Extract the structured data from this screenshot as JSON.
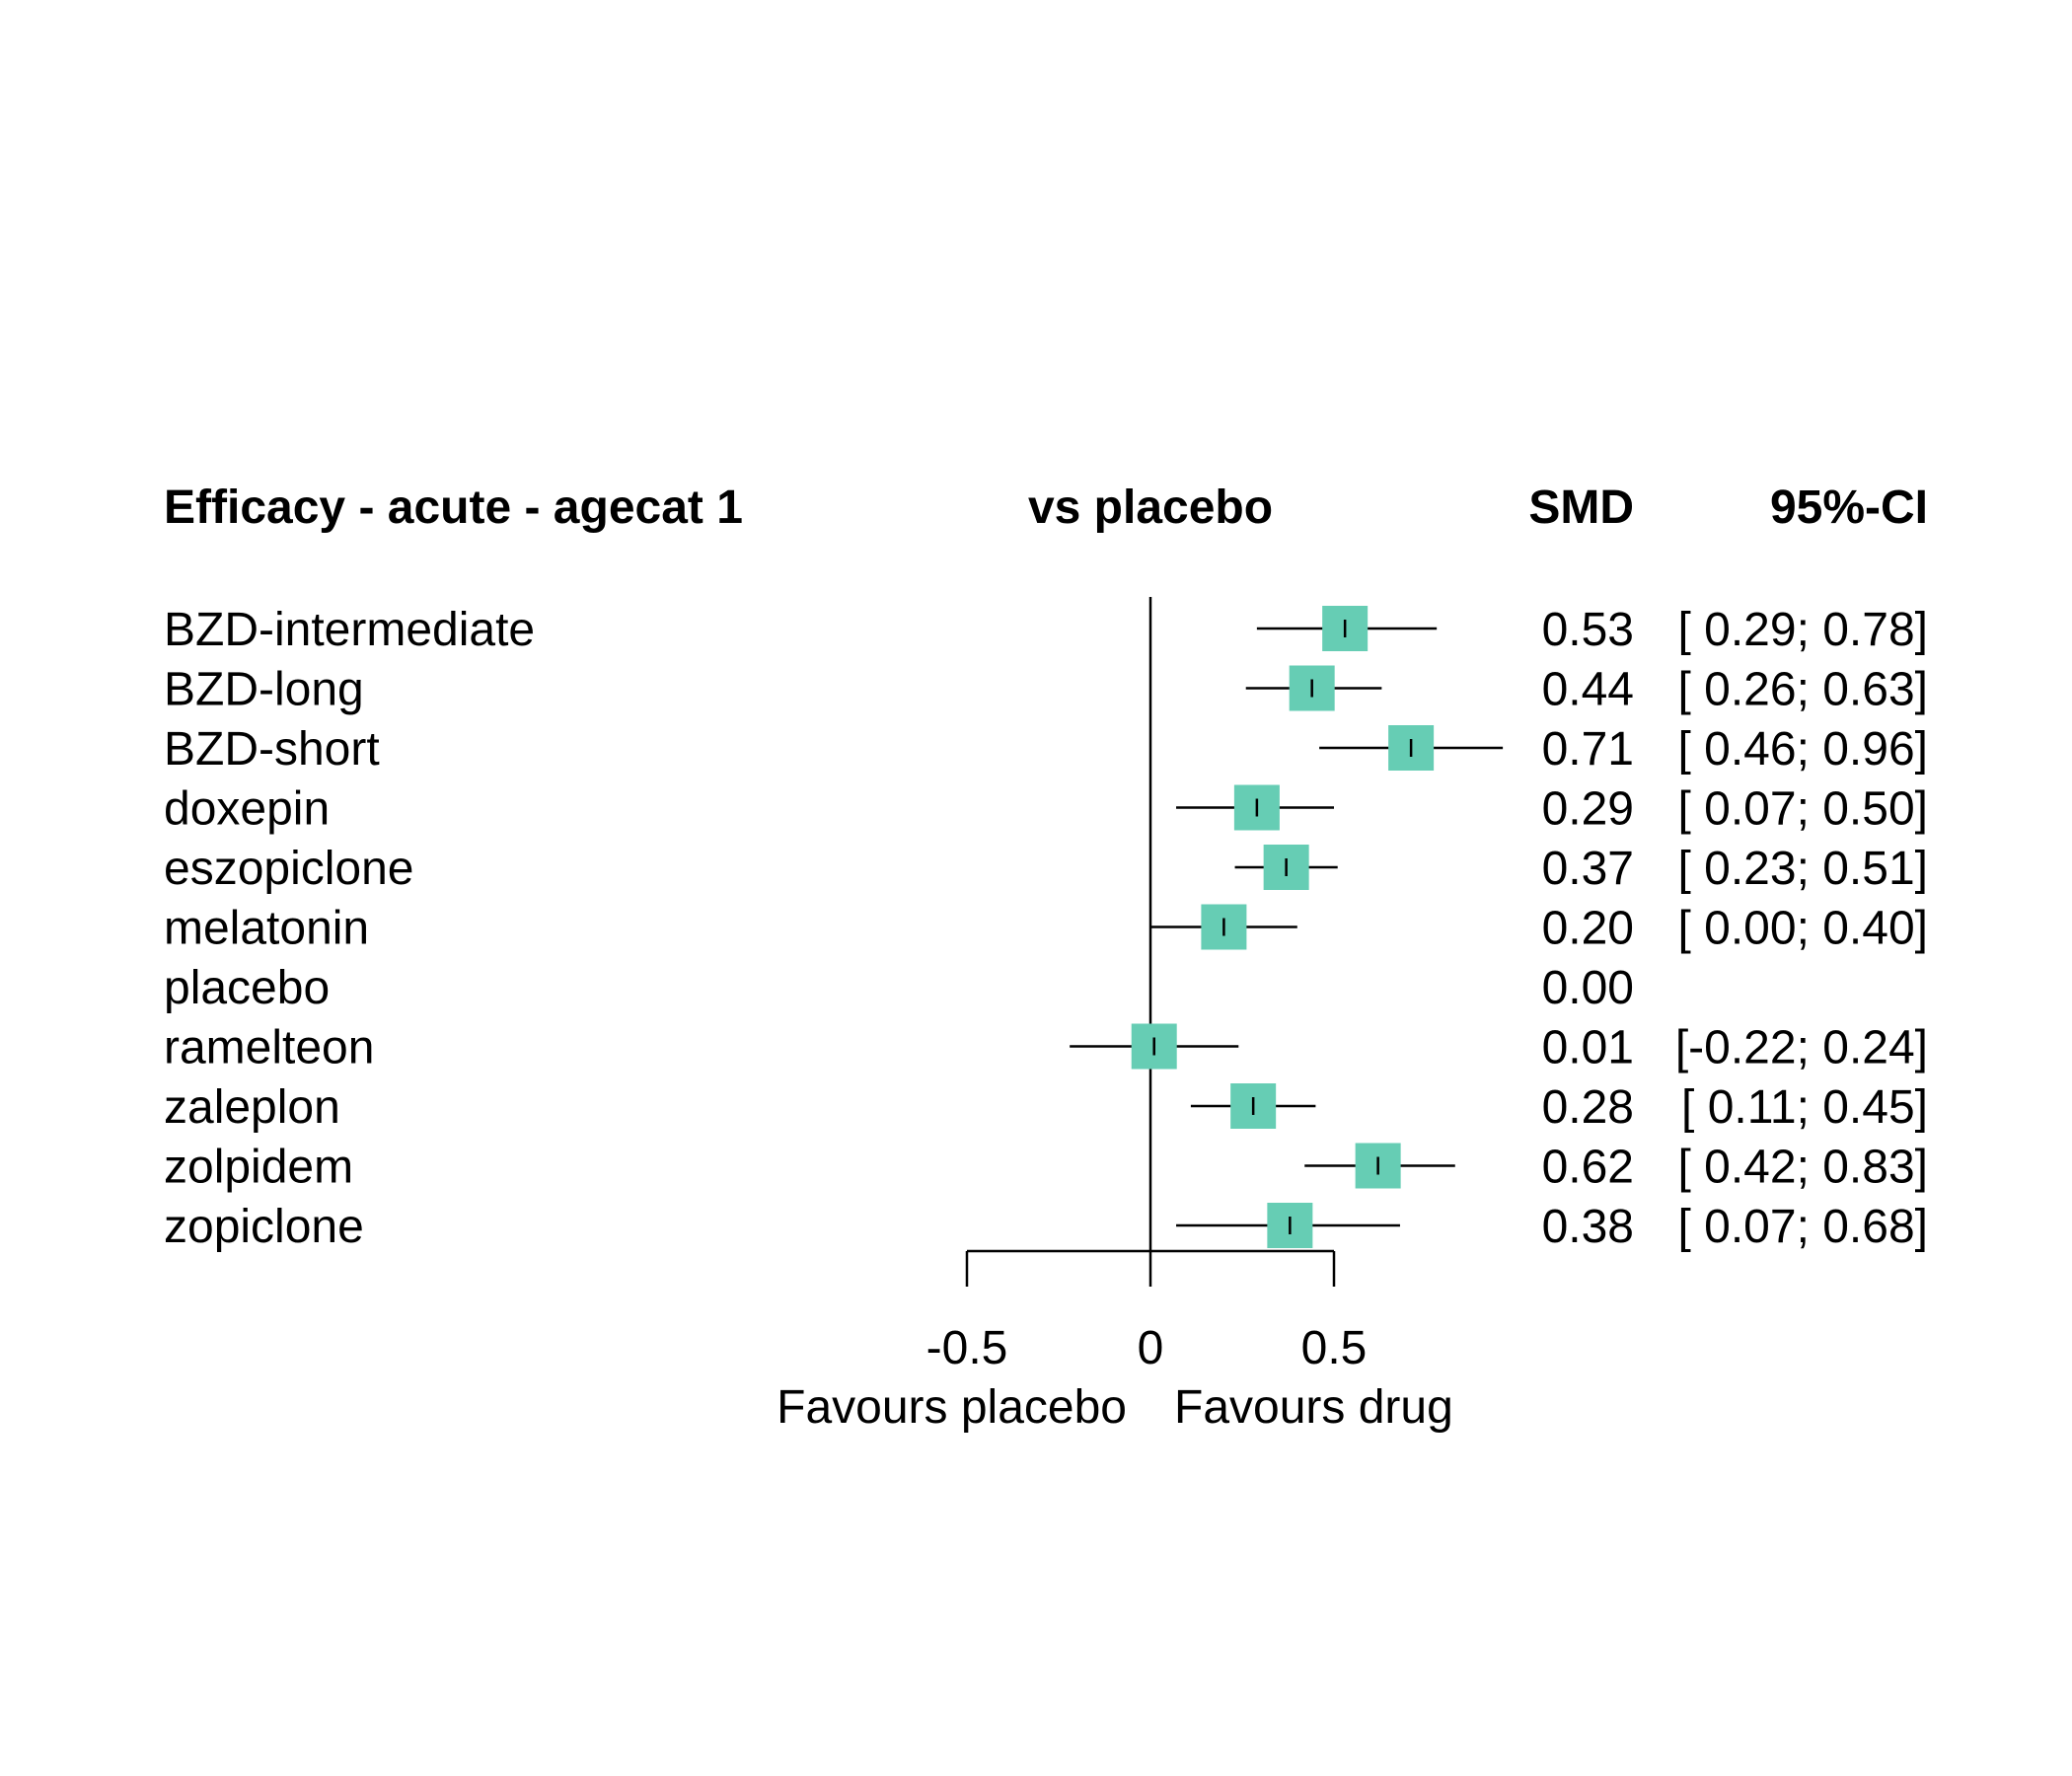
{
  "chart_data": {
    "type": "forest",
    "title": "Efficacy - acute - agecat 1",
    "comparison_label": "vs placebo",
    "columns": {
      "effect": "SMD",
      "ci": "95%-CI"
    },
    "xlim": [
      -0.5,
      0.5
    ],
    "xticks": [
      "-0.5",
      "0",
      "0.5"
    ],
    "left_label": "Favours placebo",
    "right_label": "Favours drug",
    "marker_color": "#66cdb4",
    "rows": [
      {
        "name": "BZD-intermediate",
        "smd": 0.53,
        "lower": 0.29,
        "upper": 0.78,
        "smd_label": "0.53",
        "ci_label": "[ 0.29; 0.78]"
      },
      {
        "name": "BZD-long",
        "smd": 0.44,
        "lower": 0.26,
        "upper": 0.63,
        "smd_label": "0.44",
        "ci_label": "[ 0.26; 0.63]"
      },
      {
        "name": "BZD-short",
        "smd": 0.71,
        "lower": 0.46,
        "upper": 0.96,
        "smd_label": "0.71",
        "ci_label": "[ 0.46; 0.96]"
      },
      {
        "name": "doxepin",
        "smd": 0.29,
        "lower": 0.07,
        "upper": 0.5,
        "smd_label": "0.29",
        "ci_label": "[ 0.07; 0.50]"
      },
      {
        "name": "eszopiclone",
        "smd": 0.37,
        "lower": 0.23,
        "upper": 0.51,
        "smd_label": "0.37",
        "ci_label": "[ 0.23; 0.51]"
      },
      {
        "name": "melatonin",
        "smd": 0.2,
        "lower": 0.0,
        "upper": 0.4,
        "smd_label": "0.20",
        "ci_label": "[ 0.00; 0.40]"
      },
      {
        "name": "placebo",
        "smd": 0.0,
        "lower": null,
        "upper": null,
        "smd_label": "0.00",
        "ci_label": ""
      },
      {
        "name": "ramelteon",
        "smd": 0.01,
        "lower": -0.22,
        "upper": 0.24,
        "smd_label": "0.01",
        "ci_label": "[-0.22; 0.24]"
      },
      {
        "name": "zaleplon",
        "smd": 0.28,
        "lower": 0.11,
        "upper": 0.45,
        "smd_label": "0.28",
        "ci_label": "[ 0.11; 0.45]"
      },
      {
        "name": "zolpidem",
        "smd": 0.62,
        "lower": 0.42,
        "upper": 0.83,
        "smd_label": "0.62",
        "ci_label": "[ 0.42; 0.83]"
      },
      {
        "name": "zopiclone",
        "smd": 0.38,
        "lower": 0.07,
        "upper": 0.68,
        "smd_label": "0.38",
        "ci_label": "[ 0.07; 0.68]"
      }
    ]
  }
}
